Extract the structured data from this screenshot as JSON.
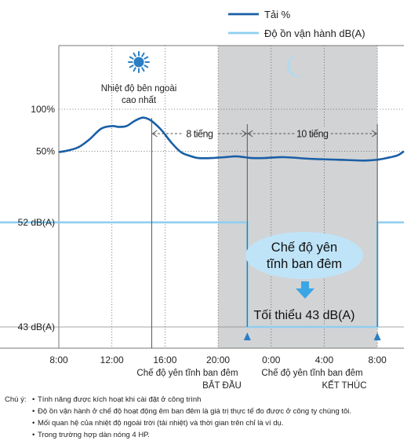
{
  "chart_data": {
    "type": "line",
    "legend": {
      "position": "top-right",
      "items": [
        {
          "label": "Tải %",
          "color": "#1a5fa6"
        },
        {
          "label": "Độ ồn vận hành dB(A)",
          "color": "#8ecff0"
        }
      ]
    },
    "x_ticks": [
      "8:00",
      "12:00",
      "16:00",
      "20:00",
      "0:00",
      "4:00",
      "8:00"
    ],
    "x_tick_hours": [
      8,
      12,
      16,
      20,
      24,
      28,
      32
    ],
    "x_range": [
      8,
      34
    ],
    "load_ticks": [
      "100%",
      "50%"
    ],
    "load_tick_values": [
      100,
      50
    ],
    "load_range": [
      0,
      150
    ],
    "noise_ticks": [
      "52 dB(A)",
      "43 dB(A)"
    ],
    "noise_tick_values": [
      52,
      43
    ],
    "series": [
      {
        "name": "Tải %",
        "color": "#1a5fa6",
        "x": [
          8,
          8.7,
          9.5,
          10.3,
          11.2,
          12,
          12.5,
          13.1,
          13.7,
          14.3,
          14.8,
          15.3,
          15.8,
          16.5,
          17.2,
          17.8,
          18.5,
          19.5,
          20.5,
          21.3,
          22,
          22.5,
          23.5,
          25,
          27,
          29,
          31,
          32,
          32.7,
          33.5,
          34
        ],
        "values": [
          49,
          51,
          55,
          64,
          77,
          80,
          79,
          80,
          86,
          90,
          88,
          82,
          74,
          60,
          49,
          45,
          42,
          42,
          43,
          44,
          43,
          42,
          42,
          43,
          41,
          40,
          39,
          40,
          42,
          45,
          50
        ]
      },
      {
        "name": "Độ ồn vận hành dB(A)",
        "color": "#8ecff0",
        "x": [
          8,
          22.2,
          22.2,
          32,
          32,
          34
        ],
        "values": [
          52,
          52,
          43,
          43,
          52,
          52
        ]
      }
    ],
    "night_band": [
      20,
      32
    ],
    "annotations": {
      "sun_label_1": "Nhiệt độ bên ngoài",
      "sun_label_2": "cao nhất",
      "span_8h": "8 tiếng",
      "span_10h": "10 tiếng",
      "bubble_1": "Chế độ yên",
      "bubble_2": "tĩnh ban đêm",
      "min_label": "Tối thiểu 43 dB(A)",
      "start_1": "Chế độ yên tĩnh ban đêm",
      "start_2": "BẮT ĐẦU",
      "end_1": "Chế độ yên tĩnh ban đêm",
      "end_2": "KẾT THÚC"
    }
  },
  "notes": {
    "label": "Chú ý:",
    "items": [
      "Tính năng được kích hoạt khi cài đặt ở công trình",
      "Độ ồn vận hành ở chế độ hoạt động êm ban đêm là giá trị thực tế đo được ở công ty chúng tôi.",
      "Mối quan hệ của nhiệt độ ngoài trời (tải nhiệt) và thời gian trên chỉ là ví dụ.",
      "Trong trường hợp dàn nóng 4 HP."
    ]
  }
}
